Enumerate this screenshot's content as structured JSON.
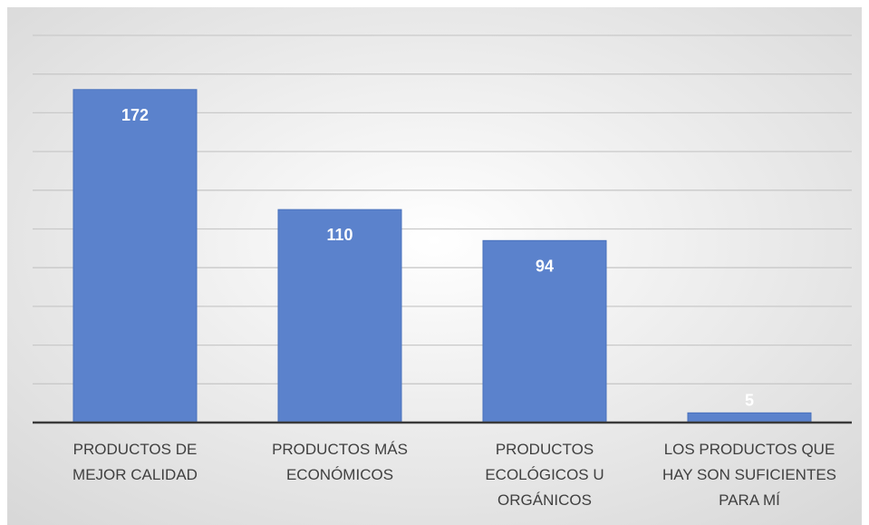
{
  "chart_data": {
    "type": "bar",
    "categories": [
      [
        "PRODUCTOS DE",
        "MEJOR CALIDAD"
      ],
      [
        "PRODUCTOS MÁS",
        "ECONÓMICOS"
      ],
      [
        "PRODUCTOS",
        "ECOLÓGICOS U",
        "ORGÁNICOS"
      ],
      [
        "LOS PRODUCTOS QUE",
        "HAY SON SUFICIENTES",
        "PARA MÍ"
      ]
    ],
    "values": [
      172,
      110,
      94,
      5
    ],
    "ylim": [
      0,
      200
    ],
    "y_step": 20,
    "grid": true,
    "legend": "none",
    "data_labels": "inside-end",
    "colors": {
      "bar": "#5b82cc",
      "bar_edge": "#4a72bd",
      "grid": "#c9c9c9",
      "axis": "#3a3a3a",
      "bg_center": "#ffffff",
      "bg_edge": "#d7d7d7"
    }
  }
}
